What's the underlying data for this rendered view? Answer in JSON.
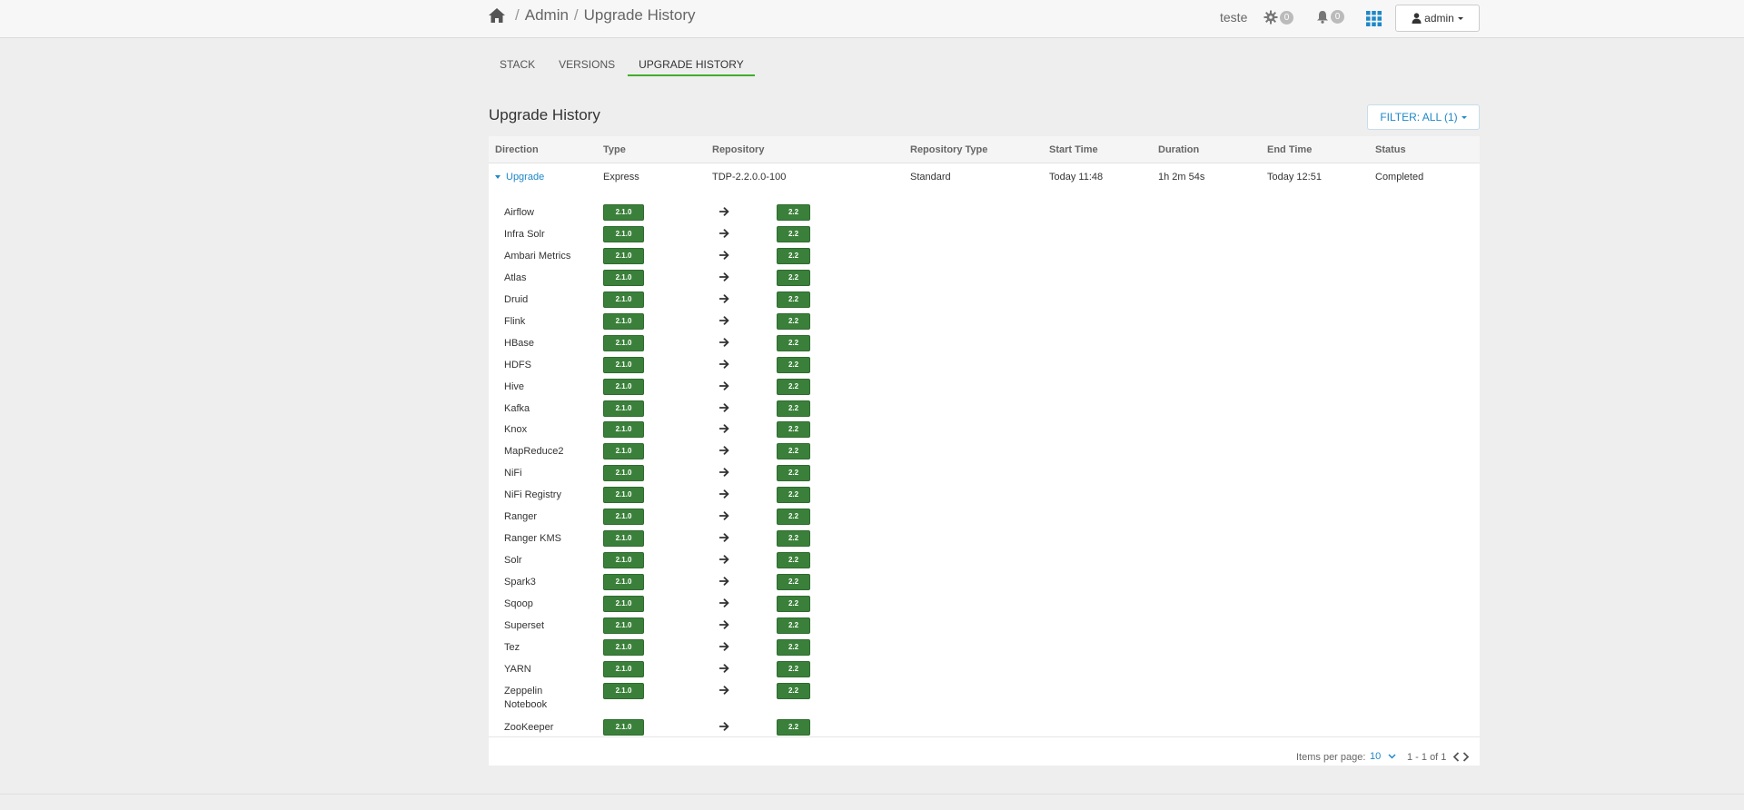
{
  "header": {
    "breadcrumb": [
      "Admin",
      "Upgrade History"
    ],
    "cluster_name": "teste",
    "ops_count": "0",
    "alerts_count": "0",
    "user_label": "admin"
  },
  "tabs": [
    {
      "label": "STACK",
      "active": false
    },
    {
      "label": "VERSIONS",
      "active": false
    },
    {
      "label": "UPGRADE HISTORY",
      "active": true
    }
  ],
  "page": {
    "title": "Upgrade History",
    "filter_label": "FILTER: ALL (1)"
  },
  "table": {
    "columns": [
      "Direction",
      "Type",
      "Repository",
      "Repository Type",
      "Start Time",
      "Duration",
      "End Time",
      "Status"
    ],
    "row": {
      "direction": "Upgrade",
      "type": "Express",
      "repository": "TDP-2.2.0.0-100",
      "repository_type": "Standard",
      "start_time": "Today 11:48",
      "duration": "1h 2m 54s",
      "end_time": "Today 12:51",
      "status": "Completed"
    },
    "services": [
      {
        "name": "Airflow",
        "from": "2.1.0",
        "to": "2.2"
      },
      {
        "name": "Infra Solr",
        "from": "2.1.0",
        "to": "2.2"
      },
      {
        "name": "Ambari Metrics",
        "from": "2.1.0",
        "to": "2.2"
      },
      {
        "name": "Atlas",
        "from": "2.1.0",
        "to": "2.2"
      },
      {
        "name": "Druid",
        "from": "2.1.0",
        "to": "2.2"
      },
      {
        "name": "Flink",
        "from": "2.1.0",
        "to": "2.2"
      },
      {
        "name": "HBase",
        "from": "2.1.0",
        "to": "2.2"
      },
      {
        "name": "HDFS",
        "from": "2.1.0",
        "to": "2.2"
      },
      {
        "name": "Hive",
        "from": "2.1.0",
        "to": "2.2"
      },
      {
        "name": "Kafka",
        "from": "2.1.0",
        "to": "2.2"
      },
      {
        "name": "Knox",
        "from": "2.1.0",
        "to": "2.2"
      },
      {
        "name": "MapReduce2",
        "from": "2.1.0",
        "to": "2.2"
      },
      {
        "name": "NiFi",
        "from": "2.1.0",
        "to": "2.2"
      },
      {
        "name": "NiFi Registry",
        "from": "2.1.0",
        "to": "2.2"
      },
      {
        "name": "Ranger",
        "from": "2.1.0",
        "to": "2.2"
      },
      {
        "name": "Ranger KMS",
        "from": "2.1.0",
        "to": "2.2"
      },
      {
        "name": "Solr",
        "from": "2.1.0",
        "to": "2.2"
      },
      {
        "name": "Spark3",
        "from": "2.1.0",
        "to": "2.2"
      },
      {
        "name": "Sqoop",
        "from": "2.1.0",
        "to": "2.2"
      },
      {
        "name": "Superset",
        "from": "2.1.0",
        "to": "2.2"
      },
      {
        "name": "Tez",
        "from": "2.1.0",
        "to": "2.2"
      },
      {
        "name": "YARN",
        "from": "2.1.0",
        "to": "2.2"
      },
      {
        "name": "Zeppelin Notebook",
        "from": "2.1.0",
        "to": "2.2"
      },
      {
        "name": "ZooKeeper",
        "from": "2.1.0",
        "to": "2.2"
      }
    ]
  },
  "pager": {
    "items_per_page_label": "Items per page:",
    "items_per_page": "10",
    "range": "1 - 1 of 1"
  },
  "icons": {
    "home": "home-icon",
    "ops": "gear-icon",
    "alerts": "bell-icon",
    "apps": "grid-icon",
    "user": "user-icon",
    "arrow": "arrow-right-icon"
  },
  "colors": {
    "accent": "#1e88c8",
    "tab_underline": "#3fae2a",
    "version_badge": "#3a803a"
  }
}
